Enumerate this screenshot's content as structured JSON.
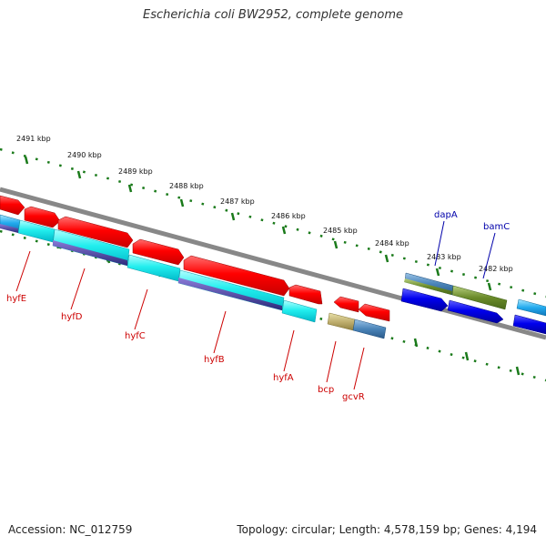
{
  "title": "Escherichia coli BW2952, complete genome",
  "footer": {
    "accession": "Accession: NC_012759",
    "topology": "Topology: circular; Length: 4,578,159 bp; Genes: 4,194"
  },
  "colors": {
    "backbone": "#888888",
    "ticks": "#1a7a1a",
    "label_minus": "#cc0000",
    "label_plus": "#0000aa"
  },
  "scale_labels": [
    "2491 kbp",
    "2490 kbp",
    "2489 kbp",
    "2488 kbp",
    "2487 kbp",
    "2486 kbp",
    "2485 kbp",
    "2484 kbp",
    "2483 kbp",
    "2482 kbp"
  ],
  "genes": [
    {
      "name": "hyfE",
      "strand": "minus"
    },
    {
      "name": "hyfD",
      "strand": "minus"
    },
    {
      "name": "hyfC",
      "strand": "minus"
    },
    {
      "name": "hyfB",
      "strand": "minus"
    },
    {
      "name": "hyfA",
      "strand": "minus"
    },
    {
      "name": "bcp",
      "strand": "minus"
    },
    {
      "name": "gcvR",
      "strand": "minus"
    },
    {
      "name": "dapA",
      "strand": "plus"
    },
    {
      "name": "bamC",
      "strand": "plus"
    }
  ]
}
